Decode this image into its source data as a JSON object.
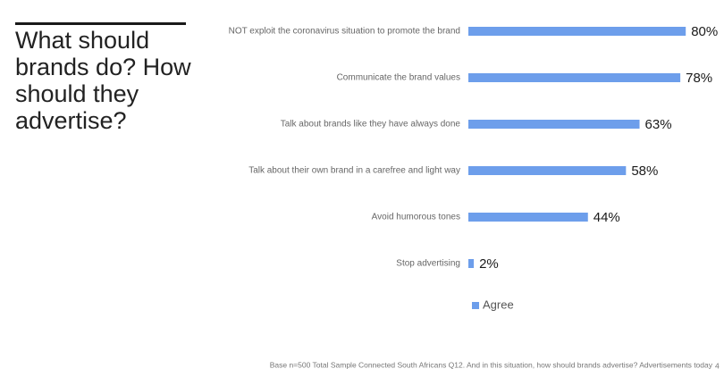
{
  "chart_data": {
    "type": "hbar",
    "title": "What should brands do? How should they advertise?",
    "categories": [
      "NOT exploit the coronavirus situation to promote the brand",
      "Communicate the brand values",
      "Talk about brands like they have always done",
      "Talk about their own brand in a carefree and light way",
      "Avoid humorous tones",
      "Stop advertising"
    ],
    "series": [
      {
        "name": "Agree",
        "color": "#6d9eeb",
        "values": [
          80,
          78,
          63,
          58,
          44,
          2
        ],
        "value_labels": [
          "80%",
          "78%",
          "63%",
          "58%",
          "44%",
          "2%"
        ]
      }
    ],
    "note": "Base n=500 Total Sample Connected South Africans    Q12. And in this situation, how should brands advertise? Advertisements today",
    "page_number": "4"
  }
}
